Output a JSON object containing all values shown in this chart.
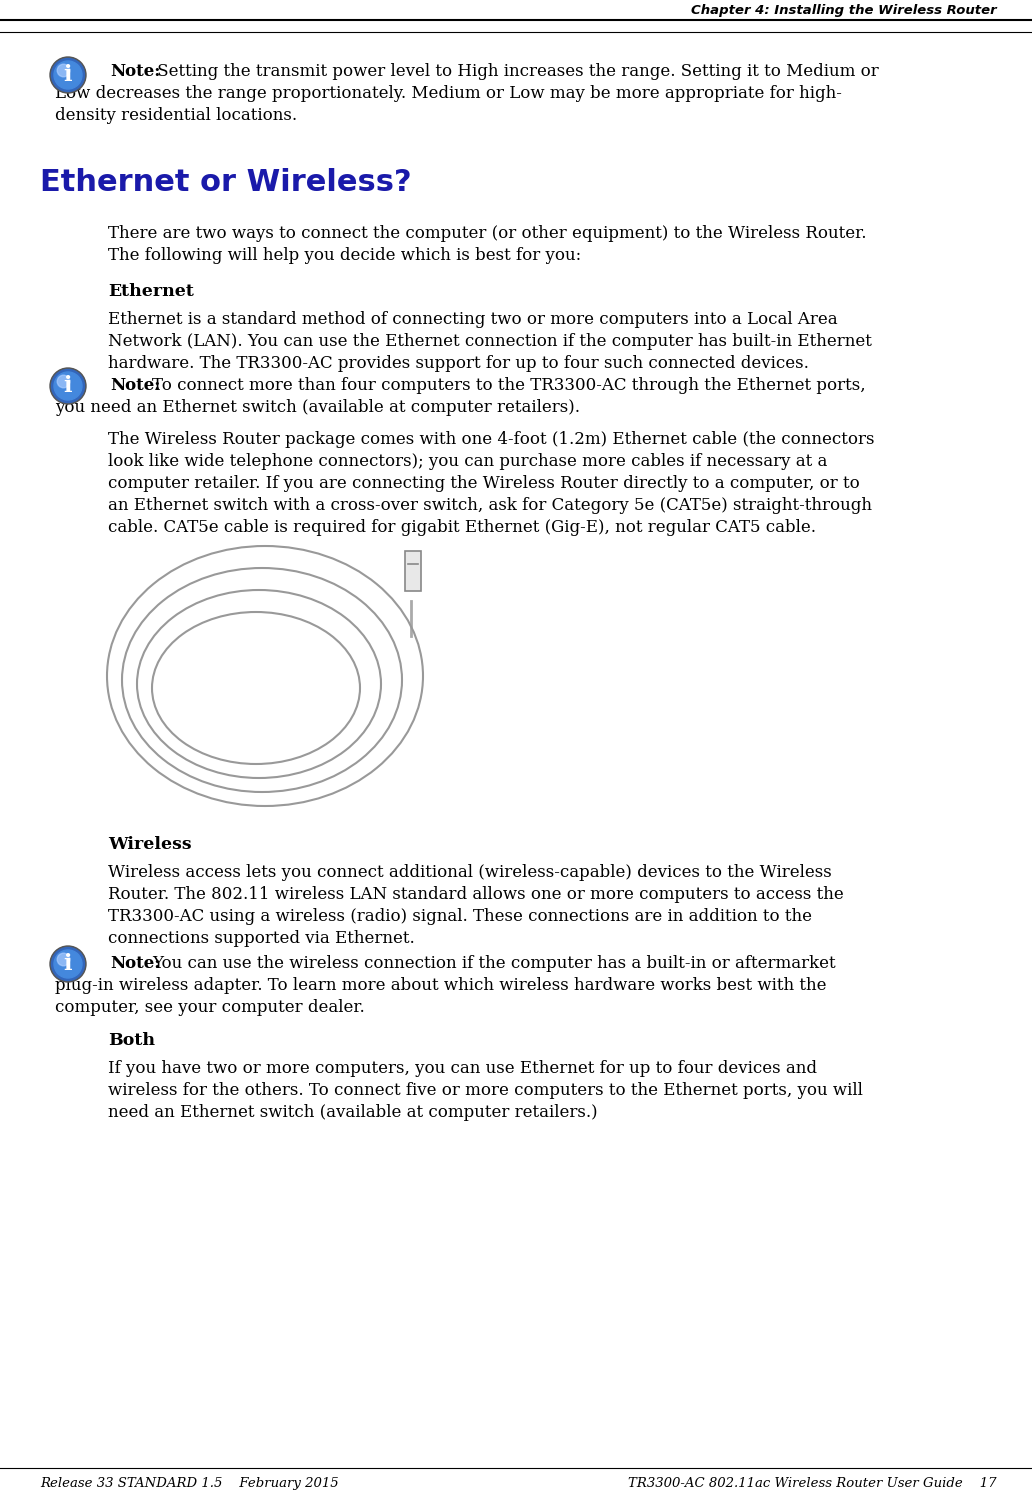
{
  "header_text": "Chapter 4: Installing the Wireless Router",
  "footer_left": "Release 33 STANDARD 1.5    February 2015",
  "footer_right": "TR3300-AC 802.11ac Wireless Router User Guide    17",
  "bg_color": "#ffffff",
  "section_title_color": "#1a1aaa",
  "section_title": "Ethernet or Wireless?",
  "intro_line1": "There are two ways to connect the computer (or other equipment) to the Wireless Router.",
  "intro_line2": "The following will help you decide which is best for you:",
  "ethernet_heading": "Ethernet",
  "eth_p1_l1": "Ethernet is a standard method of connecting two or more computers into a Local Area",
  "eth_p1_l2": "Network (LAN). You can use the Ethernet connection if the computer has built-in Ethernet",
  "eth_p1_l3": "hardware. The TR3300-AC provides support for up to four such connected devices.",
  "note2_l1": "To connect more than four computers to the TR3300-AC through the Ethernet ports,",
  "note2_l2": "you need an Ethernet switch (available at computer retailers).",
  "eth_p2_l1": "The Wireless Router package comes with one 4-foot (1.2m) Ethernet cable (the connectors",
  "eth_p2_l2": "look like wide telephone connectors); you can purchase more cables if necessary at a",
  "eth_p2_l3": "computer retailer. If you are connecting the Wireless Router directly to a computer, or to",
  "eth_p2_l4": "an Ethernet switch with a cross-over switch, ask for Category 5e (CAT5e) straight-through",
  "eth_p2_l5": "cable. CAT5e cable is required for gigabit Ethernet (Gig-E), not regular CAT5 cable.",
  "wireless_heading": "Wireless",
  "wl_p1_l1": "Wireless access lets you connect additional (wireless-capable) devices to the Wireless",
  "wl_p1_l2": "Router. The 802.11 wireless LAN standard allows one or more computers to access the",
  "wl_p1_l3": "TR3300-AC using a wireless (radio) signal. These connections are in addition to the",
  "wl_p1_l4": "connections supported via Ethernet.",
  "note3_l1": "You can use the wireless connection if the computer has a built-in or aftermarket",
  "note3_l2": "plug-in wireless adapter. To learn more about which wireless hardware works best with the",
  "note3_l3": "computer, see your computer dealer.",
  "both_heading": "Both",
  "both_l1": "If you have two or more computers, you can use Ethernet for up to four devices and",
  "both_l2": "wireless for the others. To connect five or more computers to the Ethernet ports, you will",
  "both_l3": "need an Ethernet switch (available at computer retailers.)",
  "note1_rest": " Setting the transmit power level to High increases the range. Setting it to Medium or",
  "note1_l2": "Low decreases the range proportionately. Medium or Low may be more appropriate for high-",
  "note1_l3": "density residential locations."
}
